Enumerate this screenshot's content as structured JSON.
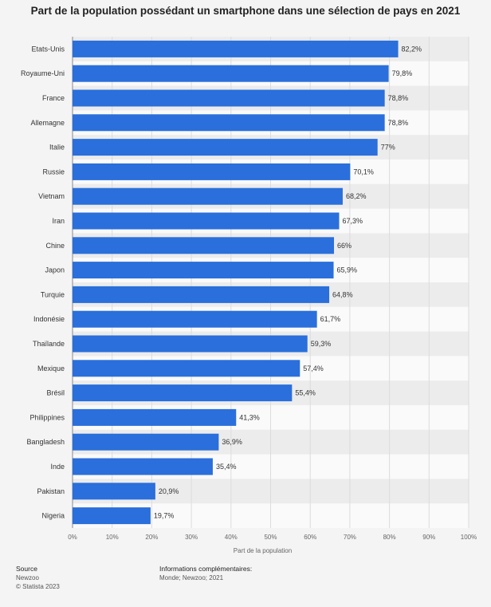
{
  "chart_data": {
    "type": "bar",
    "orientation": "horizontal",
    "title": "Part de la population possédant un smartphone dans une sélection de pays en 2021",
    "xlabel": "Part de la population",
    "ylabel": "",
    "xlim": [
      0,
      100
    ],
    "x_ticks": [
      "0%",
      "10%",
      "20%",
      "30%",
      "40%",
      "50%",
      "60%",
      "70%",
      "80%",
      "90%",
      "100%"
    ],
    "grid": true,
    "bar_color": "#2a6fdb",
    "categories": [
      "Etats-Unis",
      "Royaume-Uni",
      "France",
      "Allemagne",
      "Italie",
      "Russie",
      "Vietnam",
      "Iran",
      "Chine",
      "Japon",
      "Turquie",
      "Indonésie",
      "Thaïlande",
      "Mexique",
      "Brésil",
      "Philippines",
      "Bangladesh",
      "Inde",
      "Pakistan",
      "Nigeria"
    ],
    "values": [
      82.2,
      79.8,
      78.8,
      78.8,
      77,
      70.1,
      68.2,
      67.3,
      66,
      65.9,
      64.8,
      61.7,
      59.3,
      57.4,
      55.4,
      41.3,
      36.9,
      35.4,
      20.9,
      19.7
    ],
    "value_labels": [
      "82,2%",
      "79,8%",
      "78,8%",
      "78,8%",
      "77%",
      "70,1%",
      "68,2%",
      "67,3%",
      "66%",
      "65,9%",
      "64,8%",
      "61,7%",
      "59,3%",
      "57,4%",
      "55,4%",
      "41,3%",
      "36,9%",
      "35,4%",
      "20,9%",
      "19,7%"
    ]
  },
  "footer": {
    "source_heading": "Source",
    "source_name": "Newzoo",
    "copyright": "© Statista 2023",
    "info_heading": "Informations complémentaires:",
    "info_text": "Monde; Newzoo; 2021"
  }
}
